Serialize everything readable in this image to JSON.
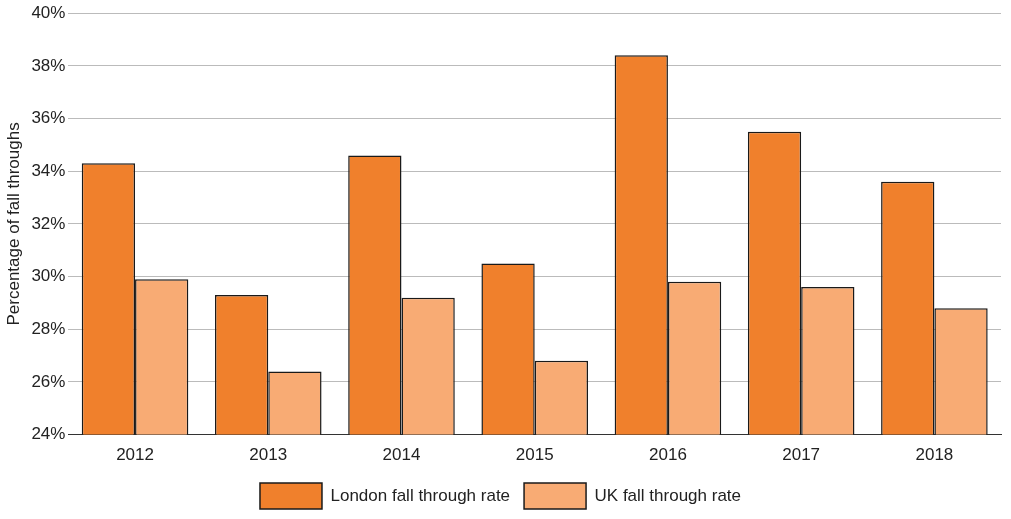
{
  "chart_data": {
    "type": "bar",
    "ylabel": "Percentage of fall throughs",
    "categories": [
      "2012",
      "2013",
      "2014",
      "2015",
      "2016",
      "2017",
      "2018"
    ],
    "series": [
      {
        "name": "London fall through rate",
        "color": "#f0802c",
        "values": [
          34.3,
          29.3,
          34.6,
          30.5,
          38.4,
          35.5,
          33.6
        ]
      },
      {
        "name": "UK fall through rate",
        "color": "#f8ab74",
        "values": [
          29.9,
          26.4,
          29.2,
          26.8,
          29.8,
          29.6,
          28.8
        ]
      }
    ],
    "ylim": [
      24,
      40
    ],
    "yticks": [
      {
        "value": 24,
        "label": "24%"
      },
      {
        "value": 26,
        "label": "26%"
      },
      {
        "value": 28,
        "label": "28%"
      },
      {
        "value": 30,
        "label": "30%"
      },
      {
        "value": 32,
        "label": "32%"
      },
      {
        "value": 34,
        "label": "34%"
      },
      {
        "value": 36,
        "label": "36%"
      },
      {
        "value": 38,
        "label": "38%"
      },
      {
        "value": 40,
        "label": "40%"
      }
    ],
    "grid": "y",
    "legend": "bottom"
  }
}
